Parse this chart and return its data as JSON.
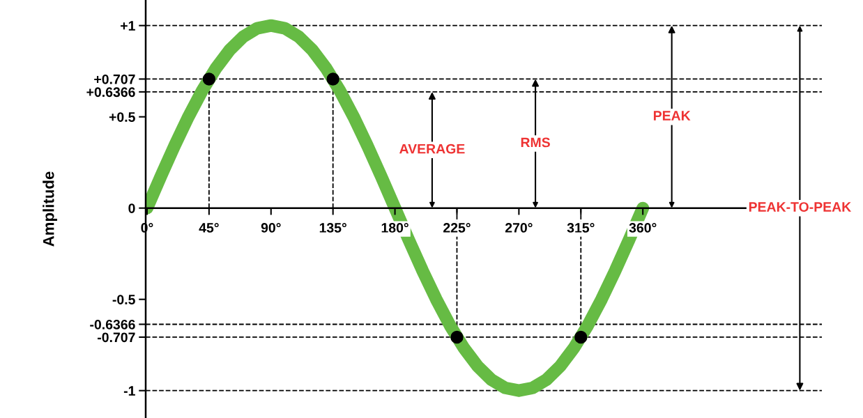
{
  "chart_data": {
    "type": "line",
    "ylabel": "Amplitude",
    "xlim": [
      -1,
      490
    ],
    "ylim": [
      -1.15,
      1.14
    ],
    "xticks": [
      {
        "value": 0,
        "label": "0°"
      },
      {
        "value": 45,
        "label": "45°"
      },
      {
        "value": 90,
        "label": "90°"
      },
      {
        "value": 135,
        "label": "135°"
      },
      {
        "value": 180,
        "label": "180°"
      },
      {
        "value": 225,
        "label": "225°"
      },
      {
        "value": 270,
        "label": "270°"
      },
      {
        "value": 315,
        "label": "315°"
      },
      {
        "value": 360,
        "label": "360°"
      }
    ],
    "yticks": [
      {
        "value": 1,
        "label": "+1"
      },
      {
        "value": 0.707,
        "label": "+0.707"
      },
      {
        "value": 0.6366,
        "label": "+0.6366"
      },
      {
        "value": 0.5,
        "label": "+0.5"
      },
      0,
      -0.5,
      -0.6366,
      -0.707,
      -1
    ],
    "grid": false,
    "legend": false,
    "marker": "none",
    "line_style": "solid",
    "series": [
      {
        "color": "#66bb44",
        "x": [
          0,
          10,
          20,
          30,
          40,
          50,
          60,
          70,
          80,
          90,
          100,
          110,
          120,
          130,
          140,
          150,
          160,
          170,
          180,
          190,
          200,
          210,
          220,
          230,
          240,
          250,
          260,
          270,
          280,
          290,
          300,
          310,
          320,
          330,
          340,
          350,
          360
        ],
        "values": [
          0,
          0.174,
          0.342,
          0.5,
          0.643,
          0.766,
          0.866,
          0.94,
          0.985,
          1,
          0.985,
          0.94,
          0.866,
          0.766,
          0.643,
          0.5,
          0.342,
          0.174,
          0,
          -0.174,
          -0.342,
          -0.5,
          -0.643,
          -0.766,
          -0.866,
          -0.94,
          -0.985,
          -1,
          -0.985,
          -0.94,
          -0.866,
          -0.766,
          -0.643,
          -0.5,
          -0.342,
          -0.174,
          0
        ]
      },
      {
        "type": "scatter",
        "color": "#000000",
        "marker": "circle",
        "x": [
          45,
          135,
          225,
          315
        ],
        "values": [
          0.707,
          0.707,
          -0.707,
          -0.707
        ]
      }
    ],
    "ref_lines": [
      {
        "axis": "y",
        "value": 1,
        "line_style": "dashed",
        "color": "#000000"
      },
      {
        "axis": "y",
        "value": 0.707,
        "line_style": "dashed",
        "color": "#000000"
      },
      {
        "axis": "y",
        "value": 0.6366,
        "line_style": "dashed",
        "color": "#000000"
      },
      {
        "axis": "y",
        "value": -0.6366,
        "line_style": "dashed",
        "color": "#000000"
      },
      {
        "axis": "y",
        "value": -0.707,
        "line_style": "dashed",
        "color": "#000000"
      },
      {
        "axis": "y",
        "value": -1,
        "line_style": "dashed",
        "color": "#000000"
      },
      {
        "axis": "x",
        "value": 45,
        "line_style": "dashed",
        "color": "#000000"
      },
      {
        "axis": "x",
        "value": 135,
        "line_style": "dashed",
        "color": "#000000"
      },
      {
        "axis": "x",
        "value": 225,
        "line_style": "dashed",
        "color": "#000000"
      },
      {
        "axis": "x",
        "value": 315,
        "line_style": "dashed",
        "color": "#000000"
      }
    ],
    "annotations": [
      {
        "text": "AVERAGE",
        "x": 207,
        "y": 0.6366
      },
      {
        "text": "RMS",
        "x": 282,
        "y": 0.707
      },
      {
        "text": "PEAK",
        "x": 381,
        "y": 1
      },
      {
        "text": "PEAK-TO-PEAK",
        "x": 474,
        "y": -1
      }
    ]
  }
}
